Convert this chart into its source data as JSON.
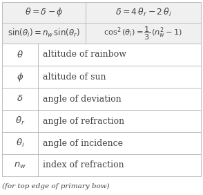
{
  "text_color": "#444444",
  "line_color": "#bbbbbb",
  "header_bg": "#f0f0f0",
  "row1_left": "$\\theta = \\delta - \\phi$",
  "row1_right": "$\\delta = 4\\,\\theta_r - 2\\,\\theta_i$",
  "row2_left": "$\\sin(\\theta_i) = n_w\\,\\sin(\\theta_r)$",
  "row2_right": "$\\cos^2(\\theta_i) = \\dfrac{1}{3}\\,(n_w^2 - 1)$",
  "definitions": [
    [
      "$\\theta$",
      "altitude of rainbow"
    ],
    [
      "$\\phi$",
      "altitude of sun"
    ],
    [
      "$\\delta$",
      "angle of deviation"
    ],
    [
      "$\\theta_r$",
      "angle of refraction"
    ],
    [
      "$\\theta_i$",
      "angle of incidence"
    ],
    [
      "$n_w$",
      "index of refraction"
    ]
  ],
  "footnote": "(for top edge of primary bow)",
  "figsize": [
    2.94,
    2.82
  ],
  "dpi": 100
}
